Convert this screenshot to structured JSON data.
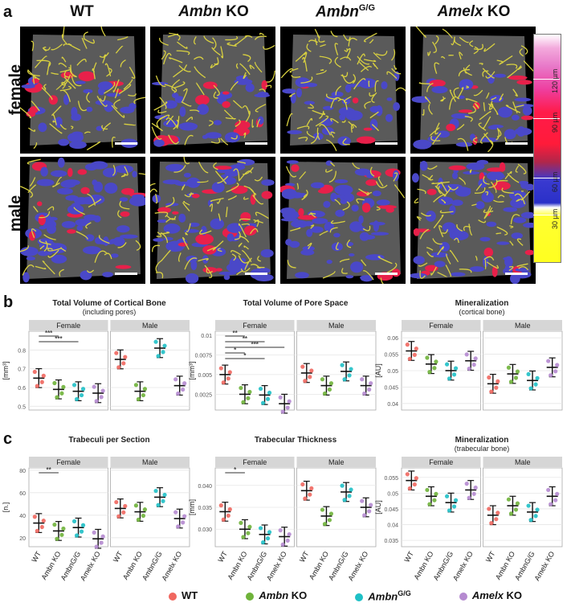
{
  "panels": {
    "a": "a",
    "b": "b",
    "c": "c"
  },
  "columns": [
    {
      "main": "WT",
      "italic": "",
      "sup": ""
    },
    {
      "main": "",
      "italic": "Ambn",
      "rest": " KO",
      "sup": ""
    },
    {
      "main": "",
      "italic": "Ambn",
      "rest": "",
      "sup": "G/G"
    },
    {
      "main": "",
      "italic": "Amelx",
      "rest": " KO",
      "sup": ""
    }
  ],
  "rows": [
    "female",
    "male"
  ],
  "colorbar": {
    "ticks": [
      "120 µm",
      "90 µm",
      "60 µm",
      "30 µm"
    ],
    "colors": [
      "#ff70c8",
      "#ff1b4a",
      "#3a3ad0",
      "#ffff30"
    ]
  },
  "charts_b": [
    {
      "title": "Total Volume of Cortical Bone",
      "subtitle": "(including pores)",
      "unit": "[mm³]",
      "facets": [
        "Female",
        "Male"
      ],
      "yticks": [
        "0.5",
        "0.6",
        "0.7",
        "0.8"
      ],
      "ylim": [
        0.48,
        0.9
      ],
      "female": [
        0.65,
        0.59,
        0.58,
        0.57
      ],
      "male": [
        0.75,
        0.58,
        0.81,
        0.61
      ],
      "sig": [
        "***",
        "***"
      ]
    },
    {
      "title": "Total Volume of Pore Space",
      "subtitle": "",
      "unit": "[mm³]",
      "facets": [
        "Female",
        "Male"
      ],
      "yticks": [
        "0.0025",
        "0.005",
        "0.0075",
        "0.01"
      ],
      "ylim": [
        0.0005,
        0.0105
      ],
      "female": [
        0.005,
        0.0025,
        0.0024,
        0.0013
      ],
      "male": [
        0.0052,
        0.0036,
        0.0054,
        0.0036
      ],
      "sig": [
        "**",
        "**",
        "***",
        "*",
        "*"
      ]
    },
    {
      "title": "Mineralization",
      "subtitle": "(cortical bone)",
      "unit": "[AU]",
      "facets": [
        "Female",
        "Male"
      ],
      "yticks": [
        "0.04",
        "0.045",
        "0.05",
        "0.055",
        "0.06"
      ],
      "ylim": [
        0.038,
        0.062
      ],
      "female": [
        0.056,
        0.052,
        0.05,
        0.053
      ],
      "male": [
        0.046,
        0.049,
        0.047,
        0.051
      ],
      "sig": []
    }
  ],
  "charts_c": [
    {
      "title": "Trabeculi per Section",
      "subtitle": "",
      "unit": "[n.]",
      "facets": [
        "Female",
        "Male"
      ],
      "yticks": [
        "20",
        "40",
        "60",
        "80"
      ],
      "ylim": [
        12,
        82
      ],
      "female": [
        33,
        26,
        29,
        19
      ],
      "male": [
        46,
        43,
        56,
        37
      ],
      "sig": [
        "**"
      ]
    },
    {
      "title": "Trabecular Thickness",
      "subtitle": "",
      "unit": "[mm]",
      "facets": [
        "Female",
        "Male"
      ],
      "yticks": [
        "0.030",
        "0.035",
        "0.040"
      ],
      "ylim": [
        0.026,
        0.044
      ],
      "female": [
        0.034,
        0.03,
        0.0288,
        0.0283
      ],
      "male": [
        0.0388,
        0.033,
        0.0385,
        0.035
      ],
      "sig": [
        "*"
      ]
    },
    {
      "title": "Mineralization",
      "subtitle": "(trabecular bone)",
      "unit": "[AU]",
      "facets": [
        "Female",
        "Male"
      ],
      "yticks": [
        "0.035",
        "0.04",
        "0.045",
        "0.05",
        "0.055"
      ],
      "ylim": [
        0.033,
        0.058
      ],
      "female": [
        0.054,
        0.049,
        0.047,
        0.051
      ],
      "male": [
        0.043,
        0.046,
        0.044,
        0.049
      ],
      "sig": []
    }
  ],
  "xlabels": [
    "WT",
    "Ambn KO",
    "AmbnG/G",
    "Amelx KO"
  ],
  "group_colors": [
    "#f0675f",
    "#6fb33a",
    "#1fc0c6",
    "#b58ad0"
  ],
  "legend": [
    {
      "label": "WT",
      "italic": false
    },
    {
      "label": "Ambn",
      "rest": " KO",
      "italic": true
    },
    {
      "label": "Ambn",
      "sup": "G/G",
      "italic": true
    },
    {
      "label": "Amelx",
      "rest": " KO",
      "italic": true
    }
  ]
}
